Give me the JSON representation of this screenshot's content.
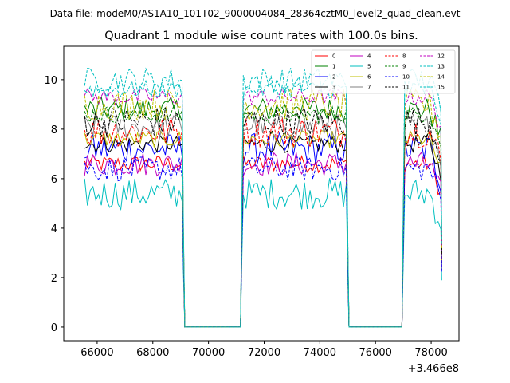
{
  "chart_data": {
    "type": "line",
    "suptitle": "Data file: modeM0/AS1A10_101T02_9000004084_28364cztM0_level2_quad_clean.evt",
    "title": "Quadrant 1 module wise count rates with 100.0s bins.",
    "xlabel": "",
    "ylabel": "",
    "x_offset_label": "+3.466e8",
    "xlim": [
      64800,
      79000
    ],
    "ylim": [
      -0.55,
      11.35
    ],
    "xticks": [
      66000,
      68000,
      70000,
      72000,
      74000,
      76000,
      78000
    ],
    "xtick_labels": [
      "66000",
      "68000",
      "70000",
      "72000",
      "74000",
      "76000",
      "78000"
    ],
    "yticks": [
      0,
      2,
      4,
      6,
      8,
      10
    ],
    "ytick_labels": [
      "0",
      "2",
      "4",
      "6",
      "8",
      "10"
    ],
    "bin_seconds": 100,
    "segments": [
      {
        "start": 65550,
        "end": 69050
      },
      {
        "start": 71250,
        "end": 74950
      },
      {
        "start": 77050,
        "end": 78350
      }
    ],
    "gaps": [
      {
        "start": 69150,
        "end": 71150
      },
      {
        "start": 75050,
        "end": 76950
      }
    ],
    "grid": false,
    "legend_position": "upper-right",
    "series": [
      {
        "name": "0",
        "color": "#ff0000",
        "dash": "solid",
        "level": 6.6
      },
      {
        "name": "1",
        "color": "#008000",
        "dash": "solid",
        "level": 8.8
      },
      {
        "name": "2",
        "color": "#0000ff",
        "dash": "solid",
        "level": 7.2
      },
      {
        "name": "3",
        "color": "#000000",
        "dash": "solid",
        "level": 7.4
      },
      {
        "name": "4",
        "color": "#c000c0",
        "dash": "solid",
        "level": 6.6
      },
      {
        "name": "5",
        "color": "#00bfbf",
        "dash": "solid",
        "level": 5.4
      },
      {
        "name": "6",
        "color": "#bfbf00",
        "dash": "solid",
        "level": 7.6
      },
      {
        "name": "7",
        "color": "#808080",
        "dash": "solid",
        "level": 8.1
      },
      {
        "name": "8",
        "color": "#ff0000",
        "dash": "dashed",
        "level": 7.9
      },
      {
        "name": "9",
        "color": "#008000",
        "dash": "dashed",
        "level": 8.6
      },
      {
        "name": "10",
        "color": "#0000ff",
        "dash": "dashed",
        "level": 6.4
      },
      {
        "name": "11",
        "color": "#000000",
        "dash": "dashed",
        "level": 8.3
      },
      {
        "name": "12",
        "color": "#c000c0",
        "dash": "dashed",
        "level": 9.3
      },
      {
        "name": "13",
        "color": "#00bfbf",
        "dash": "dashed",
        "level": 10.0
      },
      {
        "name": "14",
        "color": "#bfbf00",
        "dash": "dashed",
        "level": 9.0
      },
      {
        "name": "15",
        "color": "#00bfbf",
        "dash": "dashed",
        "level": 9.6
      }
    ]
  }
}
